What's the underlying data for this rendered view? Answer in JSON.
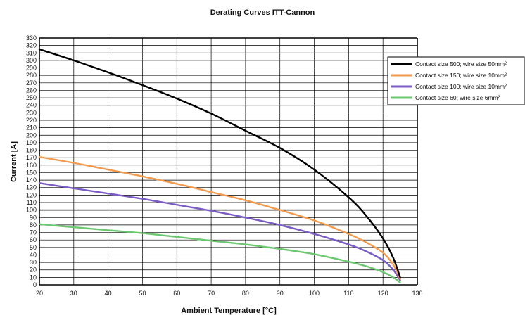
{
  "chart_data": {
    "type": "line",
    "title": "Derating Curves ITT-Cannon",
    "xlabel": "Ambient Temperature [°C]",
    "ylabel": "Current [A]",
    "xlim": [
      20,
      130
    ],
    "ylim": [
      0,
      330
    ],
    "x_ticks": [
      20,
      30,
      40,
      50,
      60,
      70,
      80,
      90,
      100,
      110,
      120,
      130
    ],
    "y_ticks": [
      0,
      10,
      20,
      30,
      40,
      50,
      60,
      70,
      80,
      90,
      100,
      110,
      120,
      130,
      140,
      150,
      160,
      170,
      180,
      190,
      200,
      210,
      220,
      230,
      240,
      250,
      260,
      270,
      280,
      290,
      300,
      310,
      320,
      330
    ],
    "grid": true,
    "legend_position": "top-right",
    "series": [
      {
        "name": "Contact size 500; wire size 50mm²",
        "color": "#000000",
        "points": [
          [
            20,
            315
          ],
          [
            30,
            300
          ],
          [
            40,
            284
          ],
          [
            50,
            267
          ],
          [
            60,
            249
          ],
          [
            70,
            229
          ],
          [
            80,
            206
          ],
          [
            90,
            183
          ],
          [
            100,
            154
          ],
          [
            110,
            117
          ],
          [
            115,
            93
          ],
          [
            120,
            62
          ],
          [
            123,
            36
          ],
          [
            125,
            10
          ]
        ]
      },
      {
        "name": "Contact size 150; wire size 10mm²",
        "color": "#f39a4c",
        "points": [
          [
            20,
            171
          ],
          [
            30,
            163
          ],
          [
            40,
            154
          ],
          [
            50,
            145
          ],
          [
            60,
            135
          ],
          [
            70,
            124
          ],
          [
            80,
            113
          ],
          [
            90,
            100
          ],
          [
            100,
            86
          ],
          [
            110,
            68
          ],
          [
            115,
            57
          ],
          [
            120,
            43
          ],
          [
            123,
            27
          ],
          [
            125,
            8
          ]
        ]
      },
      {
        "name": "Contact size 100; wire size 10mm²",
        "color": "#7a5cc4",
        "points": [
          [
            20,
            136
          ],
          [
            30,
            129
          ],
          [
            40,
            122
          ],
          [
            50,
            115
          ],
          [
            60,
            107
          ],
          [
            70,
            99
          ],
          [
            80,
            90
          ],
          [
            90,
            80
          ],
          [
            100,
            68
          ],
          [
            110,
            54
          ],
          [
            115,
            45
          ],
          [
            120,
            33
          ],
          [
            123,
            20
          ],
          [
            125,
            6
          ]
        ]
      },
      {
        "name": "Contact size 60; wire size 6mm²",
        "color": "#6cc870",
        "points": [
          [
            20,
            81
          ],
          [
            30,
            77
          ],
          [
            40,
            73
          ],
          [
            50,
            69
          ],
          [
            60,
            64
          ],
          [
            70,
            59
          ],
          [
            80,
            54
          ],
          [
            90,
            48
          ],
          [
            100,
            41
          ],
          [
            110,
            31
          ],
          [
            115,
            25
          ],
          [
            120,
            17
          ],
          [
            123,
            10
          ],
          [
            125,
            3
          ]
        ]
      }
    ]
  }
}
